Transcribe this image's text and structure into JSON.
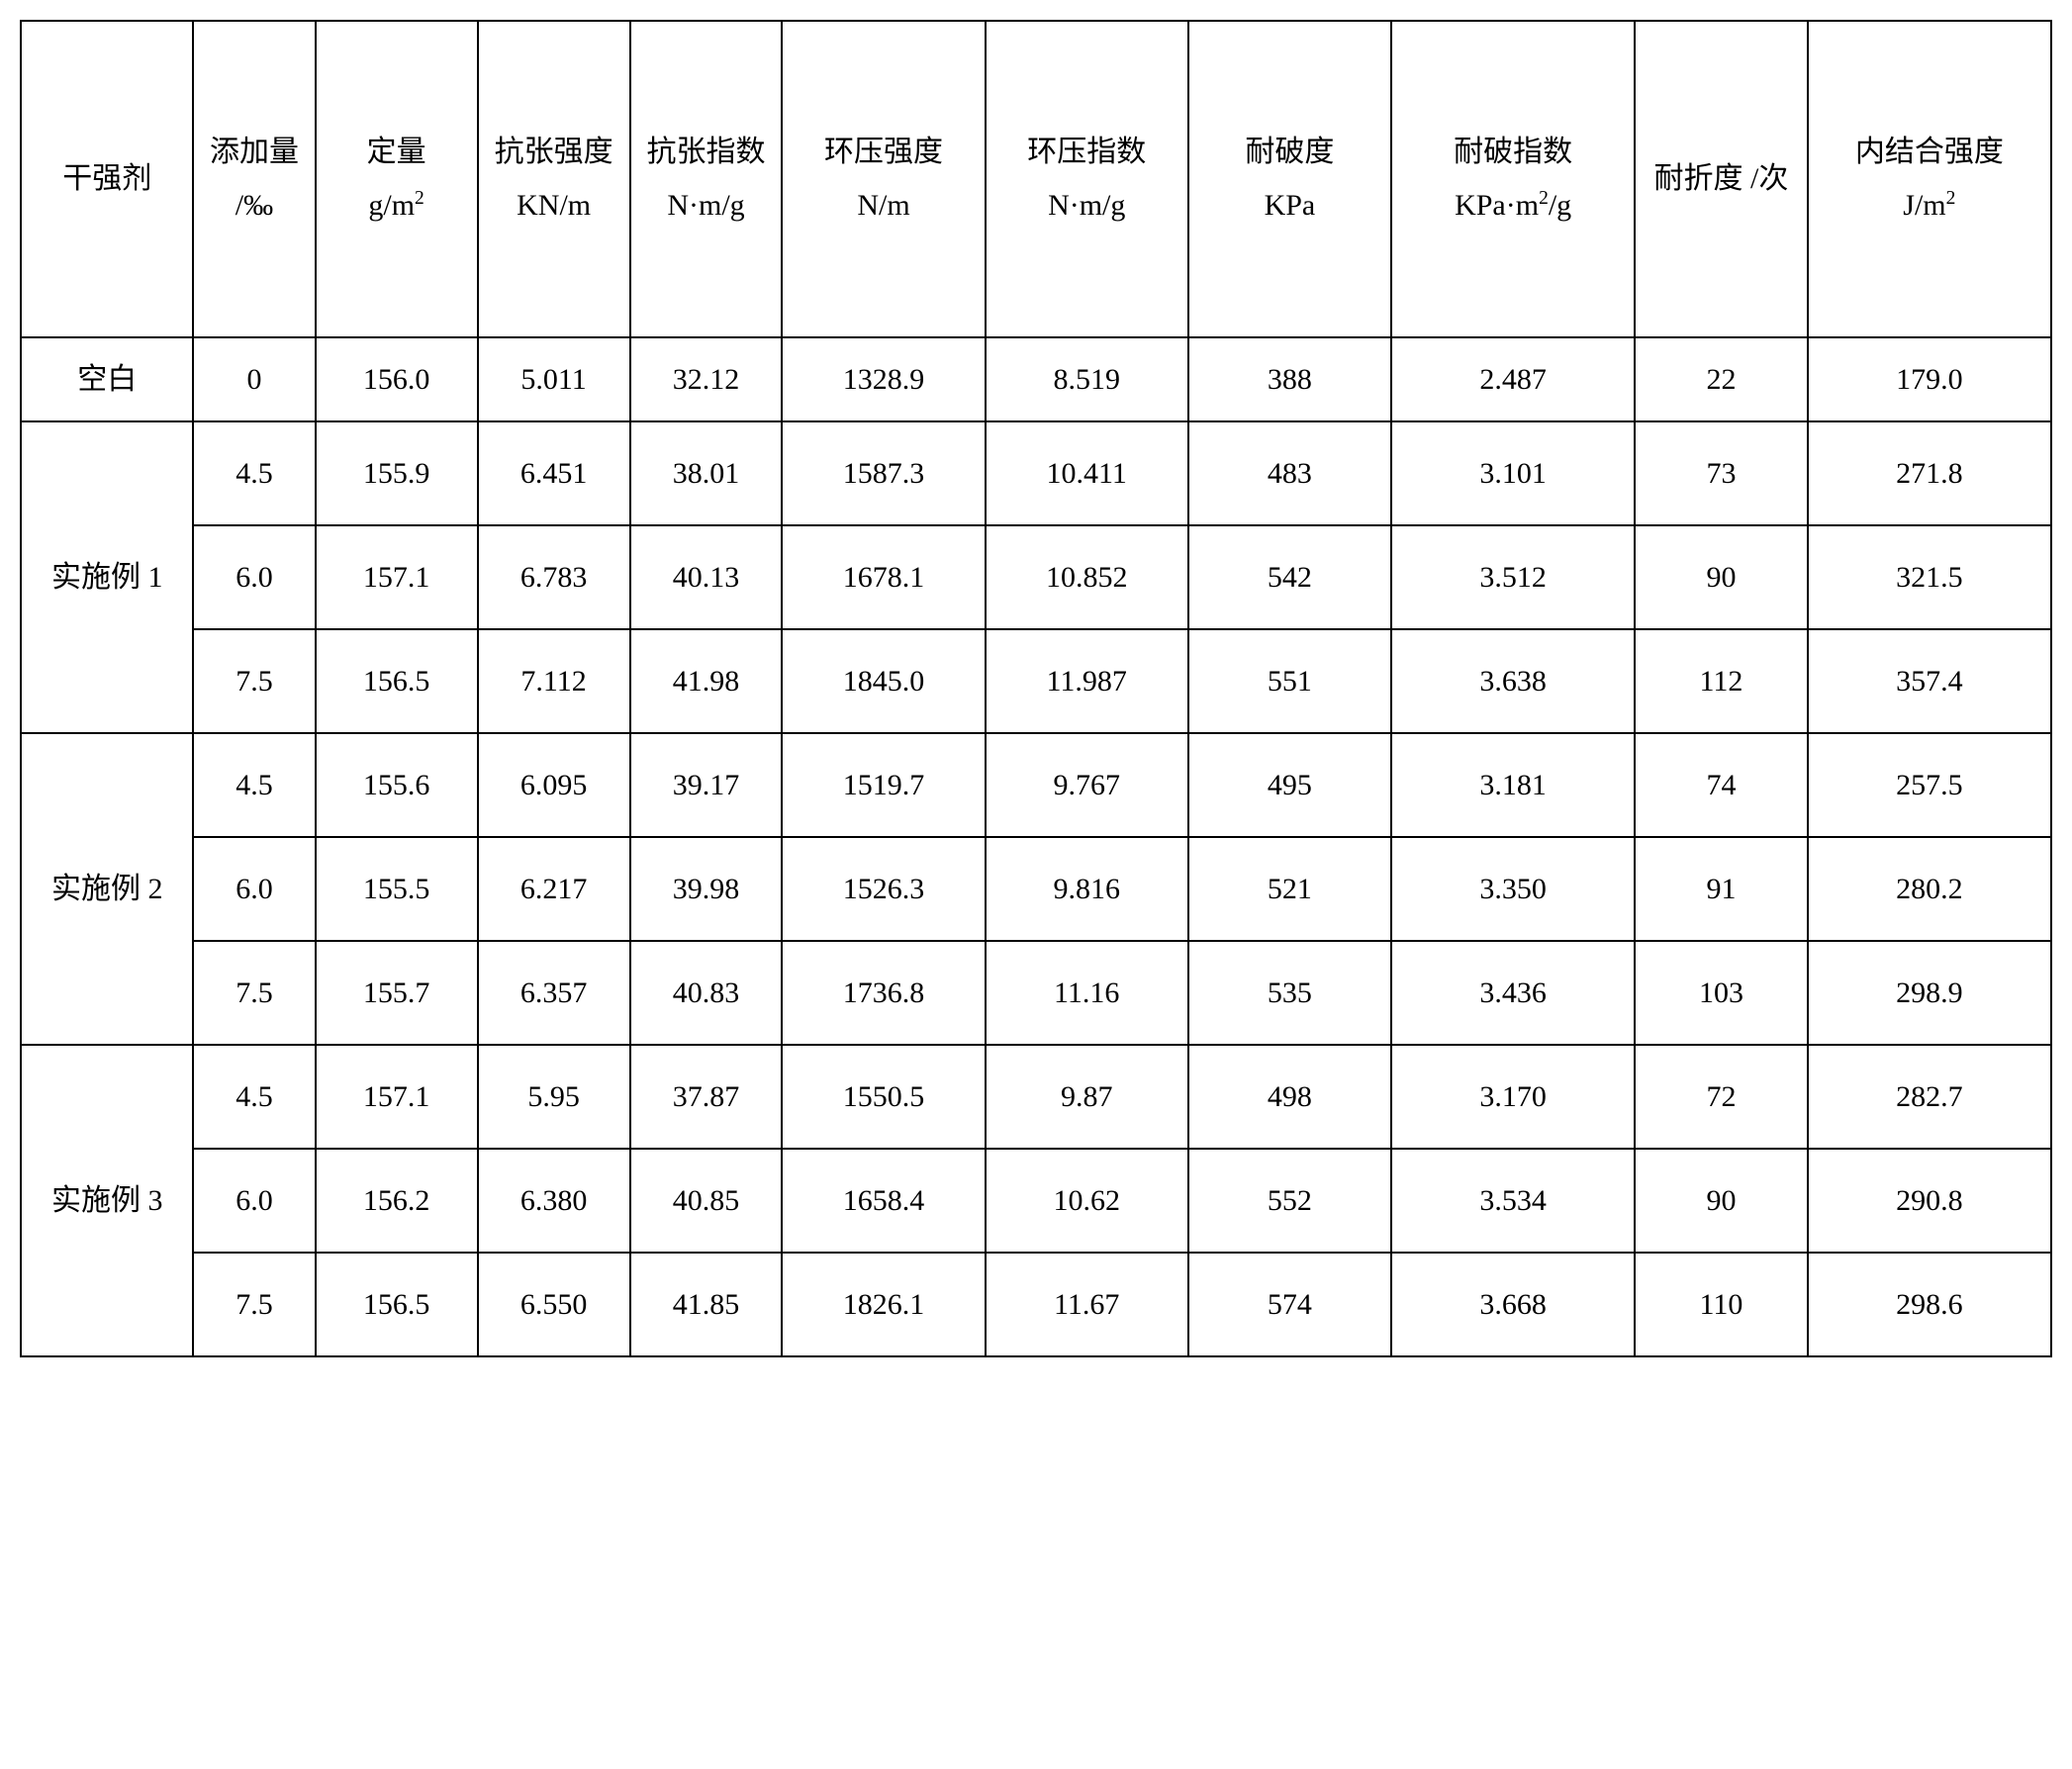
{
  "table": {
    "type": "table",
    "border_color": "#000000",
    "border_width": 2,
    "background_color": "#ffffff",
    "text_color": "#000000",
    "header_fontsize": 30,
    "cell_fontsize": 30,
    "font_family": "SimSun",
    "column_widths_percent": [
      8.5,
      6,
      8,
      7.5,
      7.5,
      10,
      10,
      10,
      12,
      8.5,
      12
    ],
    "headers": [
      {
        "label": "干强剂",
        "unit": ""
      },
      {
        "label": "添加量",
        "unit": "/‰"
      },
      {
        "label": "定量",
        "unit": "g/m²"
      },
      {
        "label": "抗张强度",
        "unit": "KN/m"
      },
      {
        "label": "抗张指数",
        "unit": "N·m/g"
      },
      {
        "label": "环压强度",
        "unit": "N/m"
      },
      {
        "label": "环压指数",
        "unit": "N·m/g"
      },
      {
        "label": "耐破度",
        "unit": "KPa"
      },
      {
        "label": "耐破指数",
        "unit": "KPa·m²/g"
      },
      {
        "label": "耐折度",
        "unit": "/次"
      },
      {
        "label": "内结合强度",
        "unit": "J/m²"
      }
    ],
    "row_groups": [
      {
        "group_label": "空白",
        "rowspan": 1,
        "rows": [
          [
            "0",
            "156.0",
            "5.011",
            "32.12",
            "1328.9",
            "8.519",
            "388",
            "2.487",
            "22",
            "179.0"
          ]
        ]
      },
      {
        "group_label": "实施例 1",
        "rowspan": 3,
        "rows": [
          [
            "4.5",
            "155.9",
            "6.451",
            "38.01",
            "1587.3",
            "10.411",
            "483",
            "3.101",
            "73",
            "271.8"
          ],
          [
            "6.0",
            "157.1",
            "6.783",
            "40.13",
            "1678.1",
            "10.852",
            "542",
            "3.512",
            "90",
            "321.5"
          ],
          [
            "7.5",
            "156.5",
            "7.112",
            "41.98",
            "1845.0",
            "11.987",
            "551",
            "3.638",
            "112",
            "357.4"
          ]
        ]
      },
      {
        "group_label": "实施例 2",
        "rowspan": 3,
        "rows": [
          [
            "4.5",
            "155.6",
            "6.095",
            "39.17",
            "1519.7",
            "9.767",
            "495",
            "3.181",
            "74",
            "257.5"
          ],
          [
            "6.0",
            "155.5",
            "6.217",
            "39.98",
            "1526.3",
            "9.816",
            "521",
            "3.350",
            "91",
            "280.2"
          ],
          [
            "7.5",
            "155.7",
            "6.357",
            "40.83",
            "1736.8",
            "11.16",
            "535",
            "3.436",
            "103",
            "298.9"
          ]
        ]
      },
      {
        "group_label": "实施例 3",
        "rowspan": 3,
        "rows": [
          [
            "4.5",
            "157.1",
            "5.95",
            "37.87",
            "1550.5",
            "9.87",
            "498",
            "3.170",
            "72",
            "282.7"
          ],
          [
            "6.0",
            "156.2",
            "6.380",
            "40.85",
            "1658.4",
            "10.62",
            "552",
            "3.534",
            "90",
            "290.8"
          ],
          [
            "7.5",
            "156.5",
            "6.550",
            "41.85",
            "1826.1",
            "11.67",
            "574",
            "3.668",
            "110",
            "298.6"
          ]
        ]
      }
    ]
  }
}
